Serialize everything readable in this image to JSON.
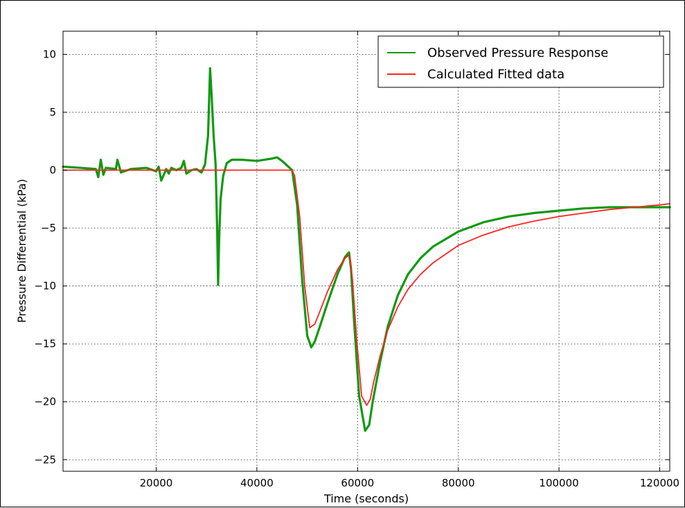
{
  "chart_data": {
    "type": "line",
    "title": "",
    "xlabel": "Time (seconds)",
    "ylabel": "Pressure Differential (kPa)",
    "xlim": [
      1500,
      122000
    ],
    "ylim": [
      -26,
      12
    ],
    "xticks": [
      20000,
      40000,
      60000,
      80000,
      100000,
      120000
    ],
    "xtick_labels": [
      "20000",
      "40000",
      "60000",
      "80000",
      "100000",
      "120000"
    ],
    "yticks": [
      10,
      5,
      0,
      -5,
      -10,
      -15,
      -20,
      -25
    ],
    "ytick_labels": [
      "10",
      "5",
      "0",
      "−5",
      "−10",
      "−15",
      "−20",
      "−25"
    ],
    "grid": true,
    "legend": "top-right",
    "series": [
      {
        "name": "Observed Pressure Response",
        "color": "#119911",
        "x": [
          1500,
          5000,
          8000,
          8500,
          9000,
          9500,
          10000,
          12000,
          12300,
          13000,
          15000,
          18000,
          20000,
          20500,
          21000,
          22000,
          22500,
          23000,
          24000,
          25000,
          25500,
          26000,
          27000,
          28000,
          29000,
          29700,
          30300,
          30700,
          31000,
          31400,
          31800,
          32100,
          32300,
          32500,
          32800,
          33300,
          34000,
          35000,
          37000,
          40000,
          43000,
          44000,
          45000,
          46000,
          47000,
          48000,
          49000,
          50000,
          50800,
          51500,
          52500,
          54000,
          56000,
          57500,
          58300,
          58700,
          59300,
          60300,
          61500,
          62300,
          63000,
          64500,
          66000,
          68000,
          70000,
          72500,
          75000,
          80000,
          85000,
          90000,
          95000,
          100000,
          105000,
          110000,
          115000,
          120000,
          122000
        ],
        "y": [
          0.3,
          0.2,
          0.1,
          -0.6,
          0.9,
          -0.4,
          0.2,
          0.1,
          0.9,
          -0.2,
          0.1,
          0.2,
          -0.1,
          0.3,
          -0.9,
          0.1,
          -0.3,
          0.2,
          0.0,
          0.2,
          0.8,
          -0.3,
          0.0,
          0.1,
          -0.2,
          0.5,
          3.0,
          8.8,
          6.5,
          3.0,
          0.5,
          -5.0,
          -9.9,
          -6.0,
          -2.5,
          -0.5,
          0.6,
          0.9,
          0.9,
          0.8,
          1.0,
          1.1,
          0.8,
          0.4,
          0.0,
          -3.0,
          -9.5,
          -14.3,
          -15.3,
          -14.8,
          -13.5,
          -11.5,
          -9.0,
          -7.5,
          -7.1,
          -8.5,
          -13.0,
          -19.5,
          -22.5,
          -22.0,
          -20.0,
          -16.5,
          -13.5,
          -10.8,
          -9.0,
          -7.6,
          -6.6,
          -5.3,
          -4.5,
          -4.0,
          -3.7,
          -3.5,
          -3.3,
          -3.2,
          -3.2,
          -3.2,
          -3.2
        ]
      },
      {
        "name": "Calculated Fitted data",
        "color": "#ff2222",
        "x": [
          1500,
          10000,
          20000,
          30000,
          40000,
          47000,
          47500,
          48500,
          49500,
          50500,
          51500,
          52500,
          54000,
          56000,
          57500,
          58400,
          59000,
          59800,
          60800,
          61800,
          62500,
          63200,
          64500,
          66000,
          68000,
          70000,
          72500,
          75000,
          80000,
          85000,
          90000,
          95000,
          100000,
          105000,
          110000,
          115000,
          120000,
          122000
        ],
        "y": [
          0.0,
          0.0,
          0.0,
          0.0,
          0.0,
          0.0,
          -0.5,
          -4.0,
          -10.0,
          -13.6,
          -13.3,
          -12.2,
          -10.5,
          -8.6,
          -7.6,
          -7.3,
          -9.5,
          -14.5,
          -19.5,
          -20.3,
          -19.8,
          -18.3,
          -16.0,
          -13.8,
          -11.8,
          -10.3,
          -9.0,
          -8.0,
          -6.5,
          -5.6,
          -4.9,
          -4.4,
          -4.0,
          -3.7,
          -3.4,
          -3.2,
          -3.0,
          -2.9
        ]
      }
    ]
  }
}
